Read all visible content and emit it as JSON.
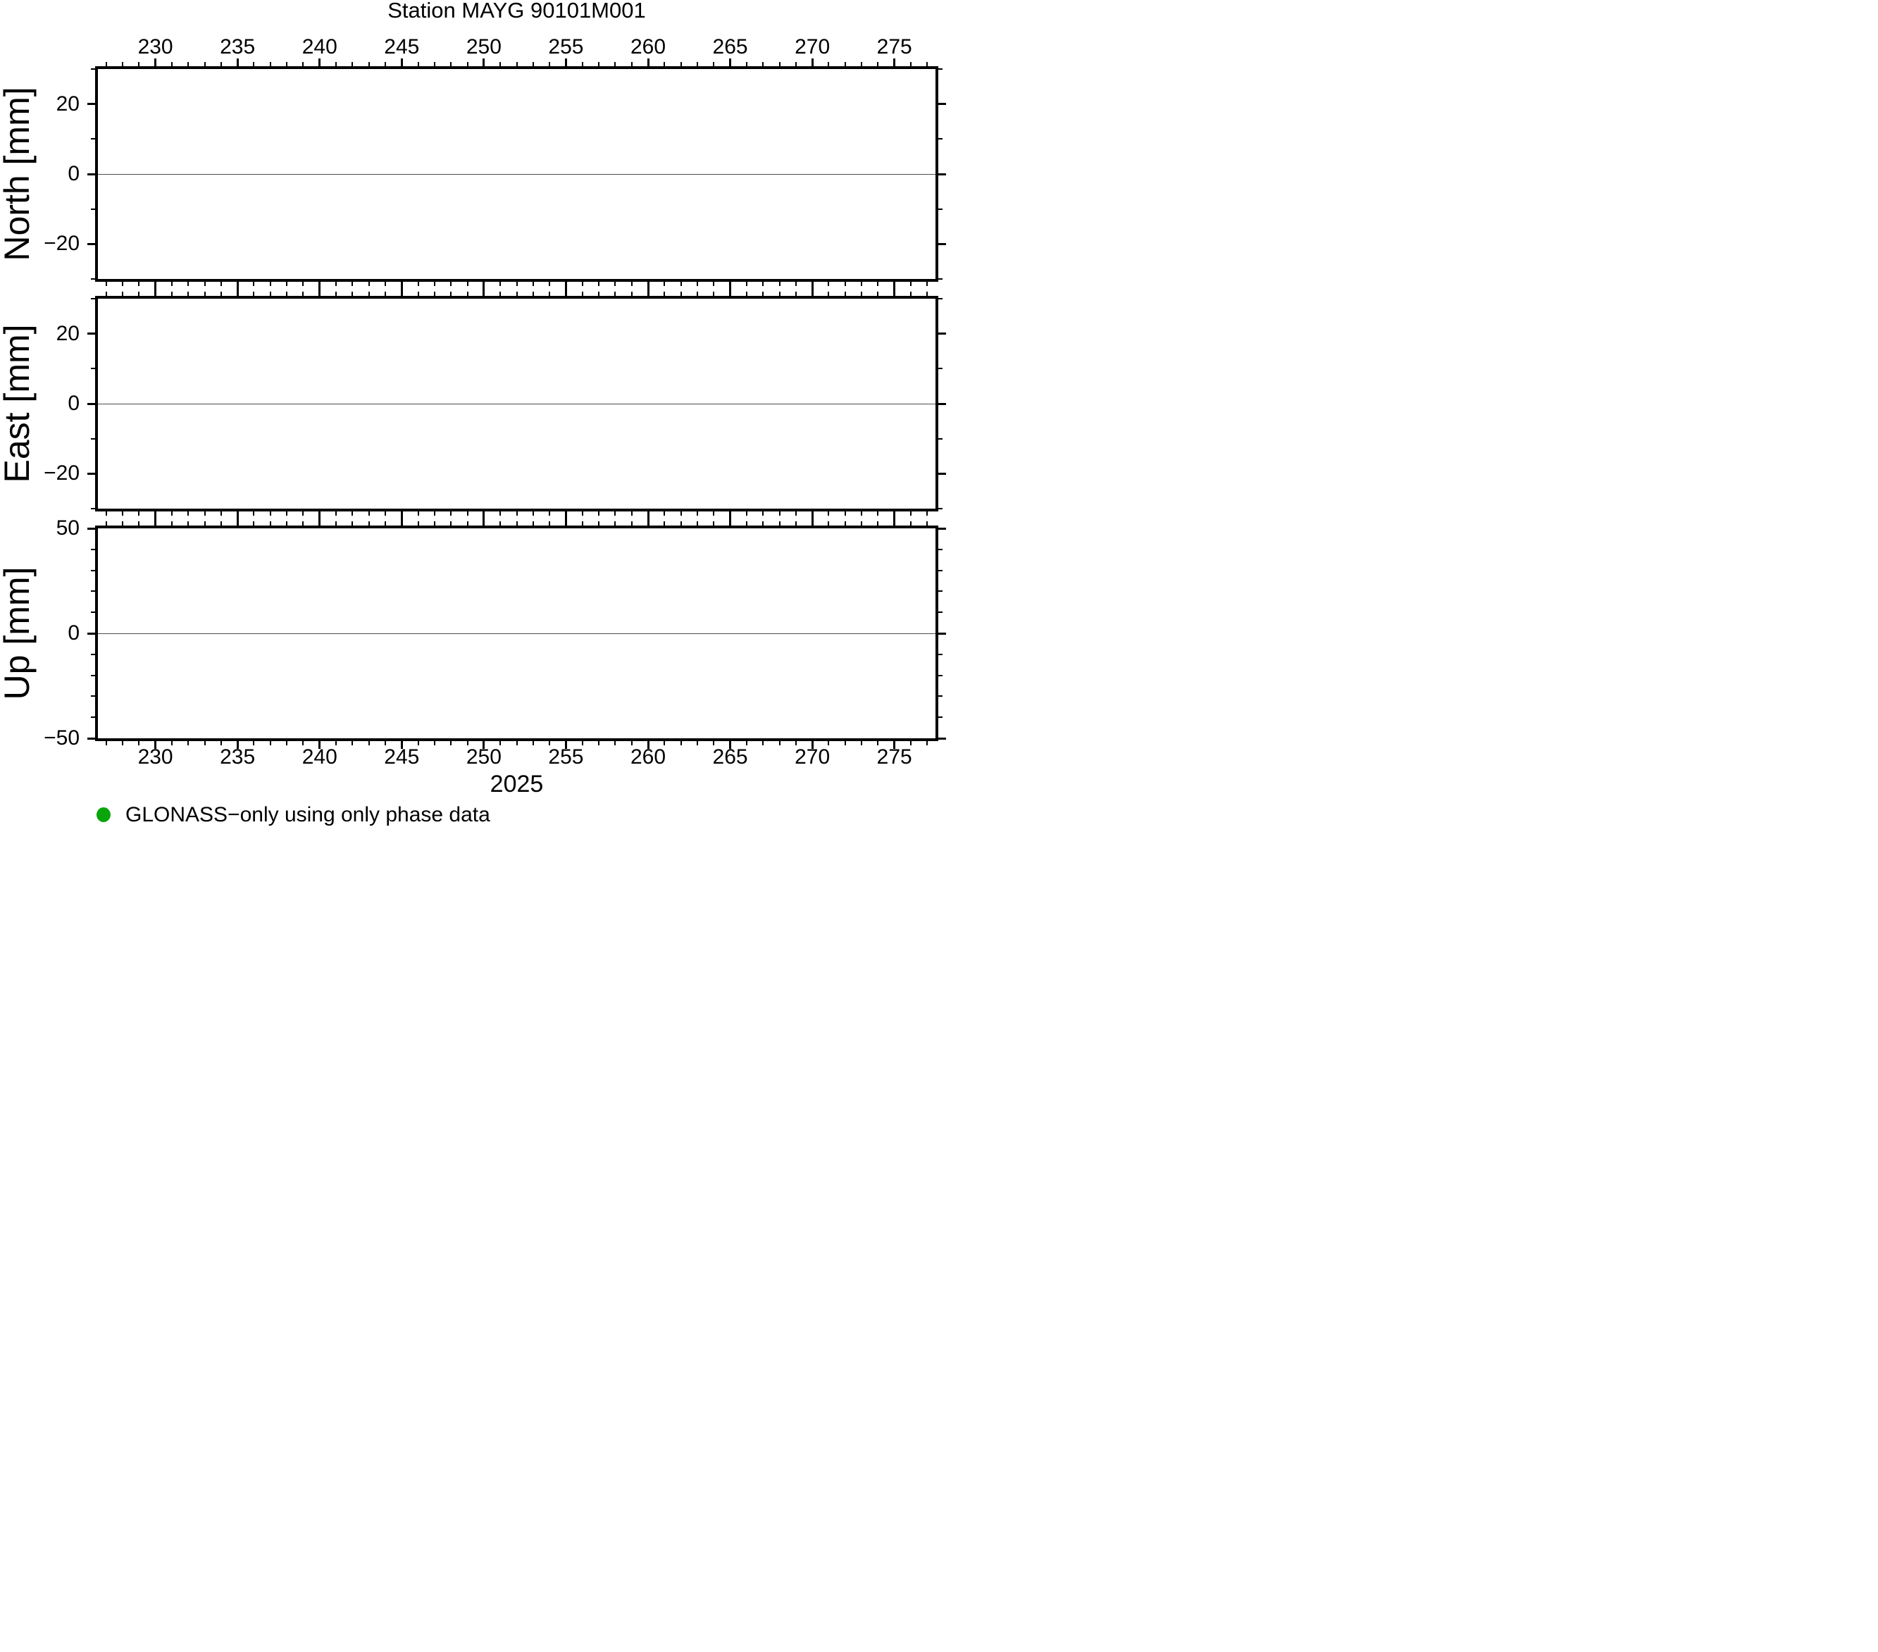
{
  "title": "Station MAYG 90101M001",
  "year_label": "2025",
  "legend": {
    "marker": "filled-circle",
    "marker_color": "#0aa50a",
    "label": "GLONASS−only using only phase data"
  },
  "colors": {
    "frame": "#000000",
    "zero_line": "#4d4d4d",
    "background": "#ffffff",
    "text": "#000000"
  },
  "chart_data": [
    {
      "type": "scatter",
      "panel": "north",
      "ylabel": "North [mm]",
      "xlim": [
        226.5,
        277.5
      ],
      "ylim": [
        -30,
        30
      ],
      "x_major_ticks": [
        230,
        235,
        240,
        245,
        250,
        255,
        260,
        265,
        270,
        275
      ],
      "x_minor_tick_step": 1,
      "y_major_ticks": [
        -20,
        0,
        20
      ],
      "y_minor_tick_step": 10,
      "zero_line": true,
      "x_labels_top": true,
      "x_labels_bottom": false,
      "series": [
        {
          "name": "GLONASS−only using only phase data",
          "color": "#0aa50a",
          "x": [],
          "y": []
        }
      ]
    },
    {
      "type": "scatter",
      "panel": "east",
      "ylabel": "East [mm]",
      "xlim": [
        226.5,
        277.5
      ],
      "ylim": [
        -30,
        30
      ],
      "x_major_ticks": [
        230,
        235,
        240,
        245,
        250,
        255,
        260,
        265,
        270,
        275
      ],
      "x_minor_tick_step": 1,
      "y_major_ticks": [
        -20,
        0,
        20
      ],
      "y_minor_tick_step": 10,
      "zero_line": true,
      "x_labels_top": false,
      "x_labels_bottom": false,
      "series": [
        {
          "name": "GLONASS−only using only phase data",
          "color": "#0aa50a",
          "x": [],
          "y": []
        }
      ]
    },
    {
      "type": "scatter",
      "panel": "up",
      "ylabel": "Up [mm]",
      "xlim": [
        226.5,
        277.5
      ],
      "ylim": [
        -50,
        50
      ],
      "x_major_ticks": [
        230,
        235,
        240,
        245,
        250,
        255,
        260,
        265,
        270,
        275
      ],
      "x_minor_tick_step": 1,
      "y_major_ticks": [
        -50,
        0,
        50
      ],
      "y_minor_tick_step": 10,
      "zero_line": true,
      "x_labels_top": false,
      "x_labels_bottom": true,
      "series": [
        {
          "name": "GLONASS−only using only phase data",
          "color": "#0aa50a",
          "x": [],
          "y": []
        }
      ]
    }
  ]
}
